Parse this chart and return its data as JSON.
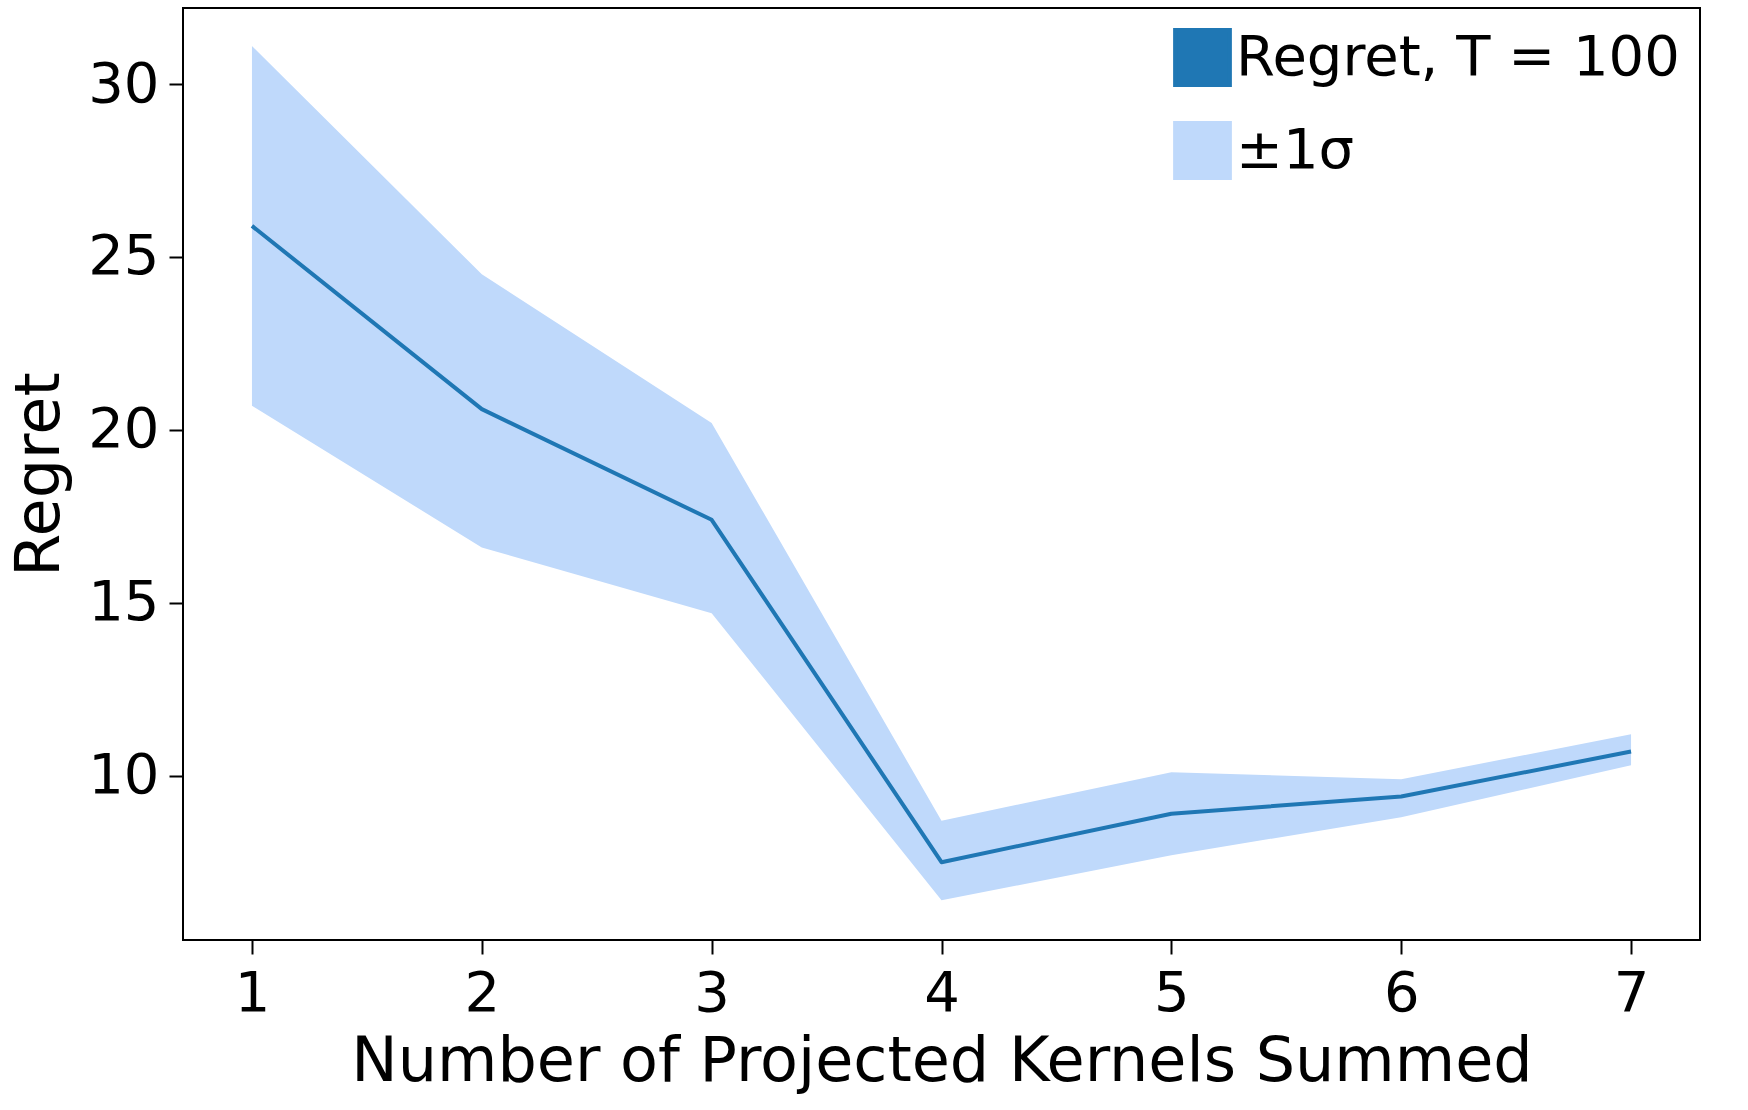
{
  "chart_data": {
    "type": "line",
    "xlabel": "Number of Projected Kernels Summed",
    "ylabel": "Regret",
    "x": [
      1,
      2,
      3,
      4,
      5,
      6,
      7
    ],
    "series": [
      {
        "name": "Regret, T = 100",
        "color": "#1f77b4",
        "values": [
          25.9,
          20.6,
          17.4,
          7.5,
          8.9,
          9.4,
          10.7
        ]
      },
      {
        "name": "±1σ",
        "type": "area",
        "color": "#bfd9fb",
        "values": [
          null,
          null,
          null,
          null,
          null,
          null,
          null
        ],
        "lower": [
          20.7,
          16.6,
          14.7,
          6.4,
          7.7,
          8.8,
          10.3
        ],
        "upper": [
          31.1,
          24.5,
          20.2,
          8.7,
          10.1,
          9.9,
          11.2
        ]
      }
    ],
    "xlim": [
      0.7,
      7.3
    ],
    "xticks": [
      1,
      2,
      3,
      4,
      5,
      6,
      7
    ],
    "ylim": [
      5.25,
      32.2
    ],
    "yticks": [
      10,
      15,
      20,
      25,
      30
    ],
    "grid": false,
    "legend": "top right"
  }
}
